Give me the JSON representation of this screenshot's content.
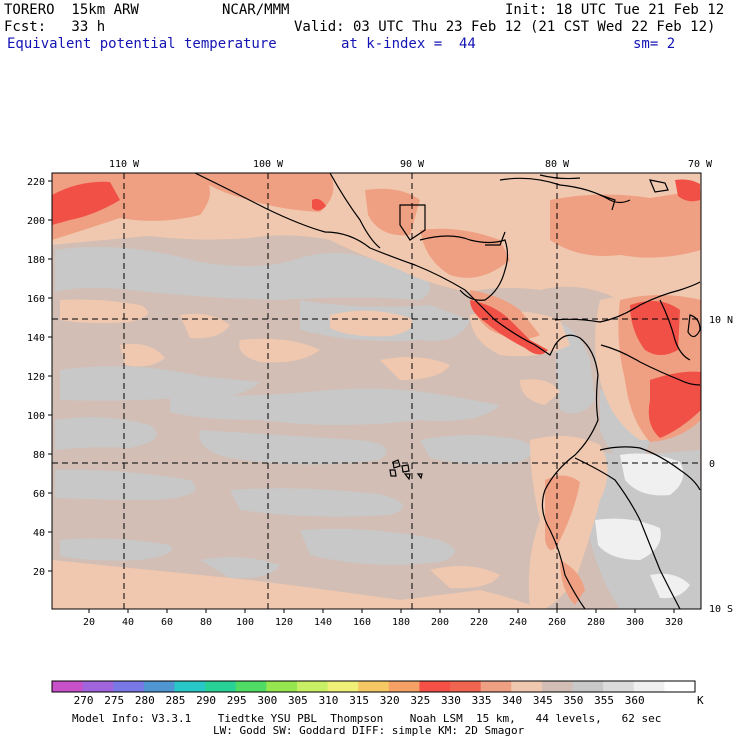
{
  "header": {
    "model": "TORERO  15km ARW",
    "center": "NCAR/MMM",
    "init": "Init: 18 UTC Tue 21 Feb 12",
    "fcst": "Fcst:   33 h",
    "valid": "Valid: 03 UTC Thu 23 Feb 12 (21 CST Wed 22 Feb 12)",
    "field": "Equivalent potential temperature",
    "level": "at k-index =  44",
    "smooth": "sm= 2"
  },
  "map": {
    "lon_labels": [
      "110 W",
      "100 W",
      "90 W",
      "80 W",
      "70 W"
    ],
    "lat_labels": [
      "10 N",
      "0",
      "10 S"
    ],
    "y_ticks": [
      "220",
      "200",
      "180",
      "160",
      "140",
      "120",
      "100",
      "80",
      "60",
      "40",
      "20"
    ],
    "x_ticks": [
      "20",
      "40",
      "60",
      "80",
      "100",
      "120",
      "140",
      "160",
      "180",
      "200",
      "220",
      "240",
      "260",
      "280",
      "300",
      "320"
    ]
  },
  "colorbar": {
    "values": [
      "270",
      "275",
      "280",
      "285",
      "290",
      "295",
      "300",
      "305",
      "310",
      "315",
      "320",
      "325",
      "330",
      "335",
      "340",
      "345",
      "350",
      "355",
      "360"
    ],
    "unit": "K",
    "colors": [
      "#c850c8",
      "#a064dc",
      "#7878e6",
      "#5096d2",
      "#28c8c8",
      "#28d296",
      "#50dc64",
      "#96e650",
      "#c8f064",
      "#f0f078",
      "#f5c864",
      "#f5a064",
      "#f55046",
      "#f06450",
      "#f0a082",
      "#f0c8af",
      "#d2beb4",
      "#c8c8c8",
      "#dcdcdc",
      "#f0f0f0",
      "#ffffff"
    ]
  },
  "footer": {
    "line1": "Model Info: V3.3.1    Tiedtke YSU PBL  Thompson    Noah LSM  15 km,   44 levels,   62 sec",
    "line2": "LW: Godd SW: Goddard DIFF: simple KM: 2D Smagor"
  },
  "colors": {
    "ocean": "#d2beb4",
    "grey": "#c8c8c8",
    "salmon": "#f0c8af",
    "pink": "#f0a082",
    "red": "#f05046",
    "lightgrey": "#dcdcdc",
    "white": "#f0f0f0",
    "text_blue": "#1414b4"
  }
}
